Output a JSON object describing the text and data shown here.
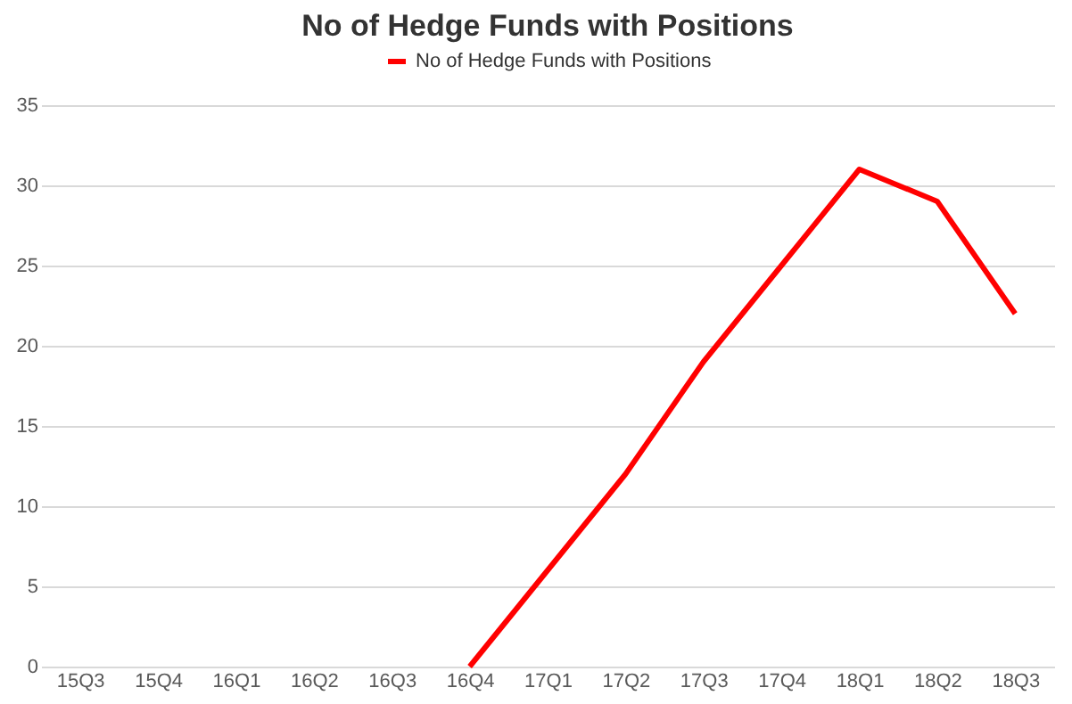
{
  "chart_data": {
    "type": "line",
    "title": "No of Hedge Funds with Positions",
    "categories": [
      "15Q3",
      "15Q4",
      "16Q1",
      "16Q2",
      "16Q3",
      "16Q4",
      "17Q1",
      "17Q2",
      "17Q3",
      "17Q4",
      "18Q1",
      "18Q2",
      "18Q3"
    ],
    "series": [
      {
        "name": "No of Hedge Funds with Positions",
        "color": "#ff0000",
        "values": [
          null,
          null,
          null,
          null,
          null,
          0,
          6,
          12,
          19,
          25,
          31,
          29,
          22
        ]
      }
    ],
    "ylim": [
      0,
      35
    ],
    "yticks": [
      0,
      5,
      10,
      15,
      20,
      25,
      30,
      35
    ],
    "grid": "y",
    "legend": "top",
    "marker": "none",
    "line_style": "solid"
  }
}
